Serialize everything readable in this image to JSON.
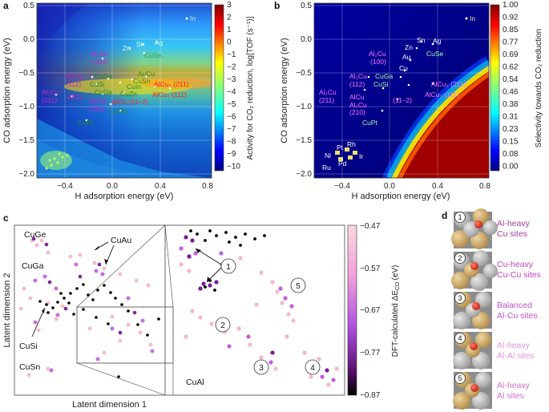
{
  "panels": {
    "a": {
      "letter": "a",
      "xlabel": "H adsorption energy (eV)",
      "ylabel": "CO adsorption energy (eV)",
      "xticks": [
        "−0.4",
        "0.0",
        "0.4",
        "0.8"
      ],
      "yticks": [
        "0.5",
        "0.0",
        "−0.5",
        "−1.0",
        "−1.5",
        "−2.0"
      ],
      "cbar_label": "Activity for CO₂ reduction, log[TOF (s⁻¹)]",
      "cbar_ticks": [
        "3",
        "2",
        "1",
        "0",
        "−1",
        "−2",
        "−3",
        "−4",
        "−5",
        "−6",
        "−7",
        "−8",
        "−9",
        "−10"
      ],
      "labels": [
        {
          "text": "In",
          "color": "#e0e0e0"
        },
        {
          "text": "Sn",
          "color": "#d8ffd0"
        },
        {
          "text": "Ag",
          "color": "#d8ffd0"
        },
        {
          "text": "Zn",
          "color": "#d8ffd0"
        },
        {
          "text": "CuSe",
          "color": "#3aa53a"
        },
        {
          "text": "Al₂Cu",
          "color": "#d020d0"
        },
        {
          "text": "(100)",
          "color": "#d020d0"
        },
        {
          "text": "AuCu",
          "color": "#2a8a2a"
        },
        {
          "text": "CuSn",
          "color": "#2a8a2a"
        },
        {
          "text": "Al₂Cu",
          "color": "#d020d0"
        },
        {
          "text": "(112)",
          "color": "#d020d0"
        },
        {
          "text": "CuGa",
          "color": "#2a8a2a"
        },
        {
          "text": "CuSi",
          "color": "#2a8a2a"
        },
        {
          "text": "CuIn",
          "color": "#2a8a2a"
        },
        {
          "text": "AlCu₃ (211)",
          "color": "#ff2020"
        },
        {
          "text": "Al₂Cu",
          "color": "#d020d0"
        },
        {
          "text": "(211)",
          "color": "#d020d0"
        },
        {
          "text": "AlCu",
          "color": "#d020d0"
        },
        {
          "text": "CuGe",
          "color": "#2a8a2a"
        },
        {
          "text": "CuZn",
          "color": "#2a8a2a"
        },
        {
          "text": "AlCu₃ (111)",
          "color": "#ff2020"
        },
        {
          "text": "Al₂Cu",
          "color": "#d020d0"
        },
        {
          "text": "(210)",
          "color": "#d020d0"
        },
        {
          "text": "AlCu (11–2)",
          "color": "#ff2020"
        },
        {
          "text": "CuPd",
          "color": "#2a8a2a"
        },
        {
          "text": "CuPt",
          "color": "#2a8a2a"
        }
      ]
    },
    "b": {
      "letter": "b",
      "xlabel": "H adsorption energy (eV)",
      "ylabel": "CO adsorption energy (eV)",
      "xticks": [
        "−0.4",
        "0.0",
        "0.4",
        "0.8"
      ],
      "yticks": [
        "0.5",
        "0.0",
        "−0.5",
        "−1.0",
        "−1.5",
        "−2.0"
      ],
      "cbar_label": "Selectivity towards CO₂ reduction",
      "cbar_ticks": [
        "1.00",
        "0.92",
        "0.85",
        "0.77",
        "0.69",
        "0.62",
        "0.54",
        "0.46",
        "0.38",
        "0.31",
        "0.23",
        "0.15",
        "0.08",
        "0.00"
      ],
      "labels": [
        {
          "text": "In",
          "color": "#f0e090"
        },
        {
          "text": "Sn",
          "color": "#ffffff"
        },
        {
          "text": "Ag",
          "color": "#ffffff"
        },
        {
          "text": "Zn",
          "color": "#ffffff"
        },
        {
          "text": "Au",
          "color": "#ffffff"
        },
        {
          "text": "CuSe",
          "color": "#a0ffa0"
        },
        {
          "text": "Cu",
          "color": "#ffffff"
        },
        {
          "text": "Al₂Cu",
          "color": "#ff70ff"
        },
        {
          "text": "(100)",
          "color": "#ff70ff"
        },
        {
          "text": "Al₂Cu",
          "color": "#ff70ff"
        },
        {
          "text": "(112)",
          "color": "#ff70ff"
        },
        {
          "text": "CuGa",
          "color": "#a0ffa0"
        },
        {
          "text": "CuSi",
          "color": "#a0ffa0"
        },
        {
          "text": "AlCu₃ (211)",
          "color": "#ff70ff"
        },
        {
          "text": "Al₂Cu",
          "color": "#ff70ff"
        },
        {
          "text": "(211)",
          "color": "#ff70ff"
        },
        {
          "text": "AlCu",
          "color": "#ff70ff"
        },
        {
          "text": "AlCu₃ (111)",
          "color": "#ff70ff"
        },
        {
          "text": "(11–2)",
          "color": "#ff70ff"
        },
        {
          "text": "Al₂Cu",
          "color": "#ff70ff"
        },
        {
          "text": "(210)",
          "color": "#ff70ff"
        },
        {
          "text": "CuPt",
          "color": "#a0ffa0"
        },
        {
          "text": "Rh",
          "color": "#ffffff"
        },
        {
          "text": "Pt",
          "color": "#ffffff"
        },
        {
          "text": "Ni",
          "color": "#ffffff"
        },
        {
          "text": "Ir",
          "color": "#ffffff"
        },
        {
          "text": "Pd",
          "color": "#ffffff"
        },
        {
          "text": "Ru",
          "color": "#ffffff"
        }
      ]
    },
    "c": {
      "letter": "c",
      "xlabel": "Latent dimension 1",
      "ylabel": "Latent dimension 2",
      "cbar_label": "DFT-calculated ΔE",
      "cbar_sub": "CO",
      "cbar_unit": "(eV)",
      "cbar_ticks": [
        "−0.47",
        "−0.57",
        "−0.67",
        "−0.77",
        "−0.87"
      ],
      "clusters": [
        "CuGe",
        "CuAu",
        "CuGa",
        "CuSi",
        "CuSn",
        "CuAl"
      ],
      "markers": [
        "1",
        "2",
        "3",
        "4",
        "5"
      ]
    },
    "d": {
      "letter": "d",
      "sites": [
        {
          "num": "1",
          "line1": "Al-heavy",
          "line2": "Cu sites",
          "color": "#a040a0"
        },
        {
          "num": "2",
          "line1": "Cu-heavy",
          "line2": "Cu-Cu sites",
          "color": "#c040c0"
        },
        {
          "num": "3",
          "line1": "Balanced",
          "line2": "Al-Cu sites",
          "color": "#c050c8"
        },
        {
          "num": "4",
          "line1": "Al-heavy",
          "line2": "Al-Al sites",
          "color": "#e090e0"
        },
        {
          "num": "5",
          "line1": "Al-heavy",
          "line2": "Al sites",
          "color": "#d070d0"
        }
      ]
    }
  }
}
